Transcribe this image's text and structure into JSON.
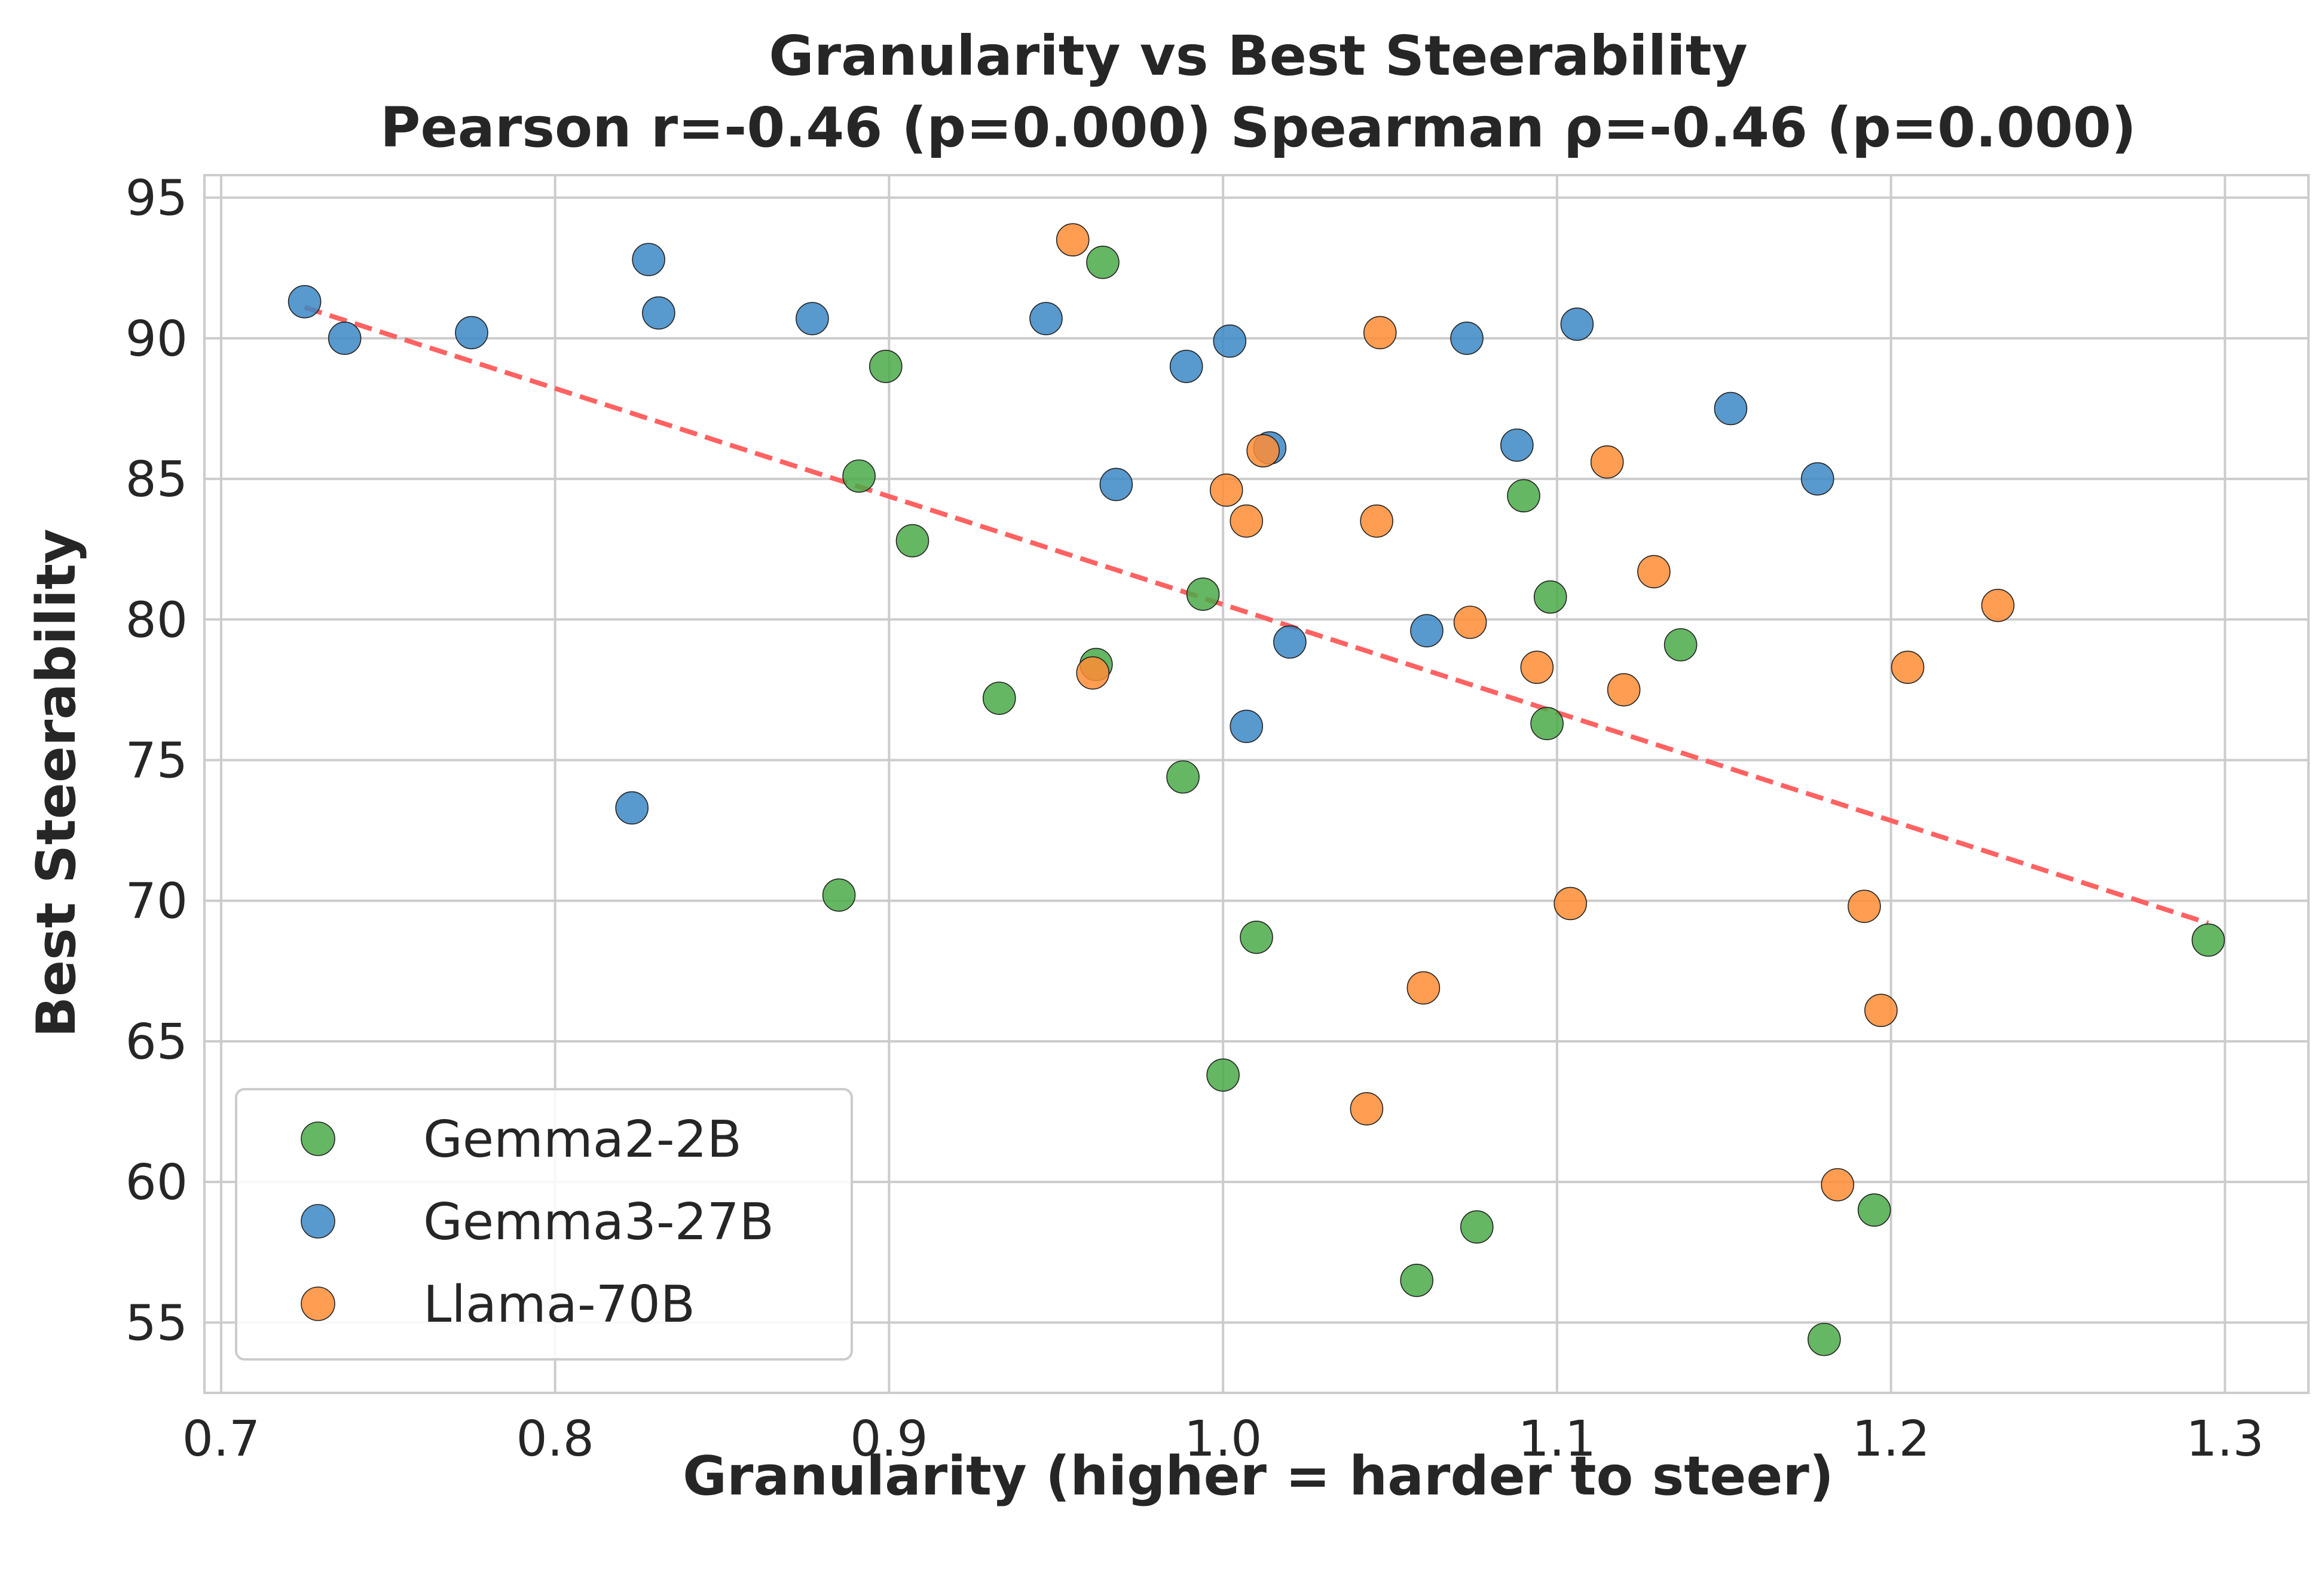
{
  "chart_data": {
    "type": "scatter",
    "title": "Granularity vs Best Steerability",
    "subtitle": "Pearson r=-0.46 (p=0.000)  Spearman ρ=-0.46 (p=0.000)",
    "xlabel": "Granularity (higher = harder to steer)",
    "ylabel": "Best Steerability",
    "xlim": [
      0.695,
      1.325
    ],
    "ylim": [
      52.5,
      95.8
    ],
    "xticks": [
      "0.7",
      "0.8",
      "0.9",
      "1.0",
      "1.1",
      "1.2",
      "1.3"
    ],
    "yticks": [
      "55",
      "60",
      "65",
      "70",
      "75",
      "80",
      "85",
      "90",
      "95"
    ],
    "grid": true,
    "legend_position": "lower-left",
    "trend_line": {
      "color": "#ff5a5a",
      "style": "dashed",
      "x": [
        0.725,
        1.295
      ],
      "y": [
        91.1,
        69.2
      ]
    },
    "series": [
      {
        "name": "Gemma2-2B",
        "color": "#4aaa48",
        "points": [
          [
            0.964,
            92.7
          ],
          [
            0.899,
            89.0
          ],
          [
            0.891,
            85.1
          ],
          [
            0.907,
            82.8
          ],
          [
            0.994,
            80.9
          ],
          [
            0.962,
            78.4
          ],
          [
            0.933,
            77.2
          ],
          [
            0.988,
            74.4
          ],
          [
            0.885,
            70.2
          ],
          [
            1.01,
            68.7
          ],
          [
            1.0,
            63.8
          ],
          [
            1.058,
            56.5
          ],
          [
            1.076,
            58.4
          ],
          [
            1.09,
            84.4
          ],
          [
            1.098,
            80.8
          ],
          [
            1.097,
            76.3
          ],
          [
            1.137,
            79.1
          ],
          [
            1.195,
            59.0
          ],
          [
            1.18,
            54.4
          ],
          [
            1.295,
            68.6
          ]
        ]
      },
      {
        "name": "Gemma3-27B",
        "color": "#3b87c5",
        "points": [
          [
            0.725,
            91.3
          ],
          [
            0.737,
            90.0
          ],
          [
            0.775,
            90.2
          ],
          [
            0.828,
            92.8
          ],
          [
            0.831,
            90.9
          ],
          [
            0.877,
            90.7
          ],
          [
            0.823,
            73.3
          ],
          [
            0.947,
            90.7
          ],
          [
            0.968,
            84.8
          ],
          [
            0.989,
            89.0
          ],
          [
            1.002,
            89.9
          ],
          [
            1.014,
            86.1
          ],
          [
            1.02,
            79.2
          ],
          [
            1.007,
            76.2
          ],
          [
            1.061,
            79.6
          ],
          [
            1.073,
            90.0
          ],
          [
            1.088,
            86.2
          ],
          [
            1.106,
            90.5
          ],
          [
            1.152,
            87.5
          ],
          [
            1.178,
            85.0
          ]
        ]
      },
      {
        "name": "Llama-70B",
        "color": "#ff8c35",
        "points": [
          [
            0.955,
            93.5
          ],
          [
            0.961,
            78.1
          ],
          [
            1.001,
            84.6
          ],
          [
            1.007,
            83.5
          ],
          [
            1.012,
            86.0
          ],
          [
            1.047,
            90.2
          ],
          [
            1.046,
            83.5
          ],
          [
            1.074,
            79.9
          ],
          [
            1.094,
            78.3
          ],
          [
            1.115,
            85.6
          ],
          [
            1.129,
            81.7
          ],
          [
            1.12,
            77.5
          ],
          [
            1.104,
            69.9
          ],
          [
            1.06,
            66.9
          ],
          [
            1.043,
            62.6
          ],
          [
            1.184,
            59.9
          ],
          [
            1.192,
            69.8
          ],
          [
            1.197,
            66.1
          ],
          [
            1.205,
            78.3
          ],
          [
            1.232,
            80.5
          ]
        ]
      }
    ]
  }
}
